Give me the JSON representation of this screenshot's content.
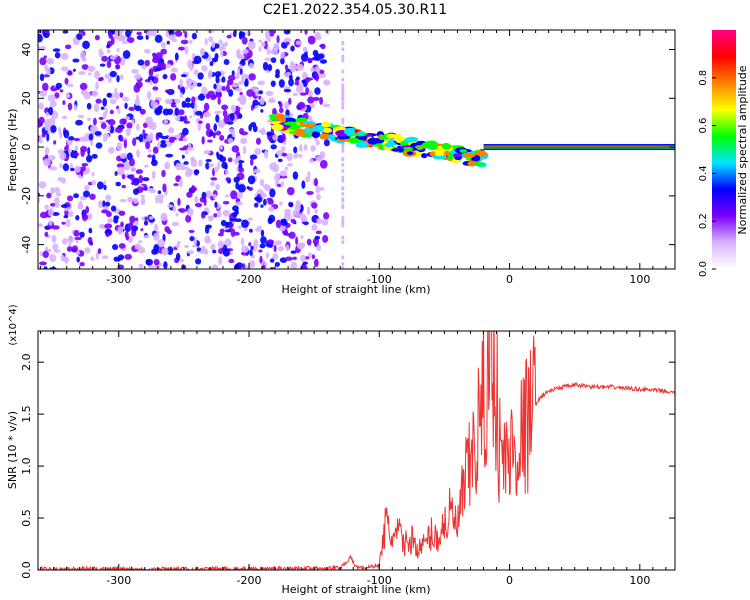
{
  "title": "C2E1.2022.354.05.30.R11",
  "chart_data": [
    {
      "type": "heatmap",
      "xlabel": "Height of straight line (km)",
      "ylabel": "Frequency (Hz)",
      "xlim": [
        -362,
        127
      ],
      "ylim": [
        -50,
        48
      ],
      "xticks": [
        -300,
        -200,
        -100,
        0,
        100
      ],
      "yticks": [
        -40,
        -20,
        0,
        20,
        40
      ],
      "grid": false,
      "colorbar": {
        "label": "Normalized spectral amplitude",
        "range": [
          0,
          1
        ],
        "ticks": [
          "0.0",
          "0.2",
          "0.4",
          "0.6",
          "0.8"
        ],
        "colors": [
          "#ffffff",
          "#d9b3ff",
          "#7a00ff",
          "#0000ff",
          "#00e5ff",
          "#00ff00",
          "#ffff00",
          "#ff8000",
          "#ff0000",
          "#ff0080"
        ]
      },
      "regions": [
        {
          "name": "scattered noise",
          "x": [
            -362,
            -140
          ],
          "freq": [
            -50,
            48
          ],
          "amplitude": 0.15
        },
        {
          "name": "main trace",
          "x": [
            -180,
            -20
          ],
          "freq": [
            10,
            -5
          ],
          "amplitude": 0.7
        },
        {
          "name": "carrier line",
          "x": [
            -20,
            127
          ],
          "freq": [
            0,
            0
          ],
          "amplitude": 0.9
        }
      ]
    },
    {
      "type": "line",
      "xlabel": "Height of straight line (km)",
      "ylabel": "SNR (10 * v/v)",
      "y_multiplier": "(x10^4)",
      "xlim": [
        -362,
        127
      ],
      "ylim": [
        0,
        2.3
      ],
      "xticks": [
        -300,
        -200,
        -100,
        0,
        100
      ],
      "yticks": [
        "0.0",
        "0.5",
        "1.0",
        "1.5",
        "2.0"
      ],
      "grid": false,
      "color": "#ee3333",
      "x": [
        -362,
        -300,
        -200,
        -130,
        -122,
        -118,
        -110,
        -100,
        -95,
        -90,
        -85,
        -80,
        -75,
        -70,
        -65,
        -60,
        -55,
        -50,
        -45,
        -40,
        -35,
        -30,
        -25,
        -20,
        -15,
        -12,
        -10,
        -8,
        -5,
        0,
        5,
        10,
        15,
        20,
        25,
        30,
        40,
        50,
        60,
        70,
        80,
        90,
        100,
        110,
        120,
        127
      ],
      "values": [
        0.01,
        0.01,
        0.01,
        0.02,
        0.12,
        0.03,
        0.02,
        0.05,
        0.45,
        0.3,
        0.35,
        0.25,
        0.3,
        0.2,
        0.25,
        0.35,
        0.3,
        0.45,
        0.55,
        0.4,
        0.8,
        1.0,
        1.3,
        1.6,
        2.0,
        2.2,
        1.7,
        1.2,
        1.05,
        1.1,
        1.2,
        1.3,
        1.45,
        1.6,
        1.68,
        1.72,
        1.76,
        1.78,
        1.77,
        1.76,
        1.76,
        1.75,
        1.74,
        1.73,
        1.72,
        1.7
      ]
    }
  ]
}
